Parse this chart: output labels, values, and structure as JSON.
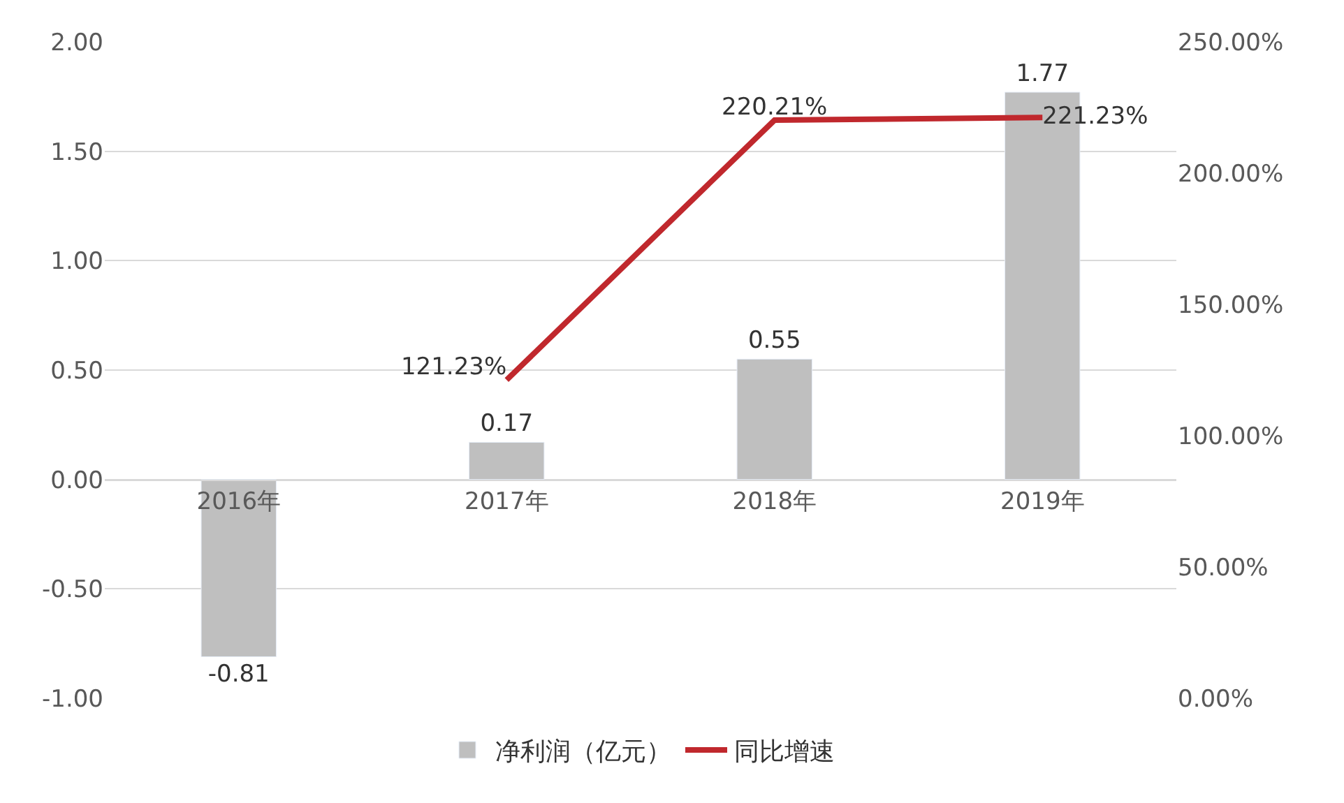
{
  "chart_data": {
    "type": "bar",
    "categories": [
      "2016年",
      "2017年",
      "2018年",
      "2019年"
    ],
    "series": [
      {
        "name": "净利润（亿元）",
        "color": "#bfbfbf",
        "values": [
          -0.81,
          0.17,
          0.55,
          1.77
        ],
        "value_labels": [
          "-0.81",
          "0.17",
          "0.55",
          "1.77"
        ]
      },
      {
        "name": "同比增速",
        "type": "line",
        "axis": "y2",
        "color": "#c0282d",
        "marker": "none",
        "line_style": "solid",
        "values": [
          null,
          121.23,
          220.21,
          221.23
        ],
        "value_labels": [
          null,
          "121.23%",
          "220.21%",
          "221.23%"
        ]
      }
    ],
    "ylim": [
      -1,
      2
    ],
    "yticks": [
      {
        "value": -1,
        "label": "-1.00"
      },
      {
        "value": -0.5,
        "label": "-0.50"
      },
      {
        "value": 0,
        "label": "0.00"
      },
      {
        "value": 0.5,
        "label": "0.50"
      },
      {
        "value": 1,
        "label": "1.00"
      },
      {
        "value": 1.5,
        "label": "1.50"
      },
      {
        "value": 2,
        "label": "2.00"
      }
    ],
    "y2lim": [
      0,
      250
    ],
    "y2ticks": [
      {
        "value": 0,
        "label": "0.00%"
      },
      {
        "value": 50,
        "label": "50.00%"
      },
      {
        "value": 100,
        "label": "100.00%"
      },
      {
        "value": 150,
        "label": "150.00%"
      },
      {
        "value": 200,
        "label": "200.00%"
      },
      {
        "value": 250,
        "label": "250.00%"
      }
    ],
    "grid": "y",
    "legend": "bottom"
  }
}
